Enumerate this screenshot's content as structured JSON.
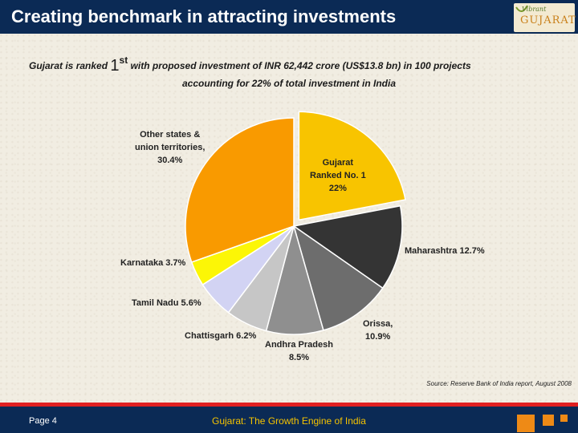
{
  "header": {
    "title": "Creating benchmark in attracting investments",
    "logo_top": "Vibrant",
    "logo_main": "GUJARAT"
  },
  "subtitle": {
    "prefix": "Gujarat is ranked",
    "rank_number": "1",
    "rank_suffix": "st",
    "rest": "with proposed investment of INR 62,442 crore (US$13.8 bn) in 100 projects",
    "line2": "accounting for 22% of total investment in India"
  },
  "chart_data": {
    "type": "pie",
    "title": "",
    "slices": [
      {
        "name": "Gujarat Ranked No. 1",
        "value": 22.0,
        "color": "#f8c400",
        "exploded": true
      },
      {
        "name": "Maharashtra",
        "value": 12.7,
        "color": "#343434"
      },
      {
        "name": "Orissa",
        "value": 10.9,
        "color": "#6d6d6d"
      },
      {
        "name": "Andhra Pradesh",
        "value": 8.5,
        "color": "#8f8f8f"
      },
      {
        "name": "Chattisgarh",
        "value": 6.2,
        "color": "#c6c6c6"
      },
      {
        "name": "Tamil Nadu",
        "value": 5.6,
        "color": "#d2d3f3"
      },
      {
        "name": "Karnataka",
        "value": 3.7,
        "color": "#fcf606"
      },
      {
        "name": "Other states & union territories",
        "value": 30.4,
        "color": "#f99a00"
      }
    ],
    "labels": {
      "gujarat": [
        "Gujarat",
        "Ranked No. 1",
        "22%"
      ],
      "maharashtra": "Maharashtra 12.7%",
      "orissa": [
        "Orissa,",
        "10.9%"
      ],
      "andhra": [
        "Andhra Pradesh",
        "8.5%"
      ],
      "chattisgarh": "Chattisgarh 6.2%",
      "tamilnadu": "Tamil Nadu 5.6%",
      "karnataka": "Karnataka 3.7%",
      "others": [
        "Other states &",
        "union territories,",
        "30.4%"
      ]
    }
  },
  "source": "Source: Reserve Bank of India report, August 2008",
  "footer": {
    "page": "Page 4",
    "title": "Gujarat: The Growth Engine of India"
  }
}
